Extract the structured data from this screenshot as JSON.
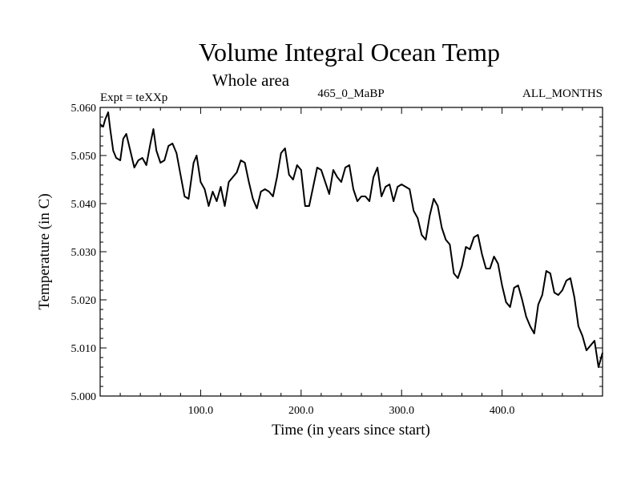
{
  "chart_data": {
    "type": "line",
    "title": "Volume Integral Ocean Temp",
    "subtitle": "Whole area",
    "experiment": "Expt = teXXp",
    "period": "465_0_MaBP",
    "months": "ALL_MONTHS",
    "xlabel": "Time (in years since start)",
    "ylabel": "Temperature (in C)",
    "xlim": [
      0,
      500
    ],
    "ylim": [
      5.0,
      5.06
    ],
    "x_ticks": [
      100,
      200,
      300,
      400
    ],
    "x_tick_labels": [
      "100.0",
      "200.0",
      "300.0",
      "400.0"
    ],
    "y_ticks": [
      5.0,
      5.01,
      5.02,
      5.03,
      5.04,
      5.05,
      5.06
    ],
    "y_tick_labels": [
      "5.000",
      "5.010",
      "5.020",
      "5.030",
      "5.040",
      "5.050",
      "5.060"
    ],
    "series": [
      {
        "name": "Volume integral ocean temperature",
        "color": "#000000",
        "x": [
          0,
          3,
          5,
          8,
          10,
          13,
          16,
          20,
          23,
          26,
          30,
          34,
          38,
          42,
          46,
          50,
          53,
          56,
          60,
          64,
          68,
          72,
          76,
          80,
          84,
          88,
          90,
          93,
          96,
          100,
          104,
          108,
          112,
          116,
          120,
          124,
          128,
          132,
          136,
          140,
          144,
          148,
          152,
          156,
          160,
          164,
          168,
          172,
          176,
          180,
          184,
          188,
          192,
          196,
          200,
          204,
          208,
          212,
          216,
          220,
          224,
          228,
          232,
          236,
          240,
          244,
          248,
          252,
          256,
          260,
          264,
          268,
          272,
          276,
          280,
          284,
          288,
          292,
          296,
          300,
          304,
          308,
          312,
          316,
          320,
          324,
          328,
          332,
          336,
          340,
          344,
          348,
          352,
          356,
          360,
          364,
          368,
          372,
          376,
          380,
          384,
          388,
          392,
          396,
          400,
          404,
          408,
          412,
          416,
          420,
          424,
          428,
          432,
          436,
          440,
          444,
          448,
          452,
          456,
          460,
          464,
          468,
          472,
          476,
          480,
          484,
          488,
          492,
          496,
          500
        ],
        "values": [
          5.0565,
          5.056,
          5.0575,
          5.059,
          5.0555,
          5.051,
          5.0495,
          5.049,
          5.0535,
          5.0545,
          5.051,
          5.0475,
          5.049,
          5.0495,
          5.048,
          5.0525,
          5.0555,
          5.051,
          5.0485,
          5.049,
          5.052,
          5.0525,
          5.0505,
          5.046,
          5.0415,
          5.041,
          5.044,
          5.0485,
          5.05,
          5.0445,
          5.043,
          5.0395,
          5.0425,
          5.0405,
          5.0435,
          5.0395,
          5.0445,
          5.0455,
          5.0465,
          5.049,
          5.0485,
          5.0445,
          5.041,
          5.039,
          5.0425,
          5.043,
          5.0425,
          5.0415,
          5.0455,
          5.0505,
          5.0515,
          5.046,
          5.045,
          5.048,
          5.047,
          5.0395,
          5.0395,
          5.0435,
          5.0475,
          5.047,
          5.0445,
          5.042,
          5.047,
          5.0455,
          5.0445,
          5.0475,
          5.048,
          5.043,
          5.0405,
          5.0415,
          5.0415,
          5.0405,
          5.0455,
          5.0475,
          5.0415,
          5.0435,
          5.044,
          5.0405,
          5.0435,
          5.044,
          5.0435,
          5.043,
          5.0385,
          5.037,
          5.0335,
          5.0325,
          5.0375,
          5.041,
          5.0395,
          5.035,
          5.0325,
          5.0315,
          5.0255,
          5.0245,
          5.027,
          5.031,
          5.0305,
          5.033,
          5.0335,
          5.0295,
          5.0265,
          5.0265,
          5.029,
          5.0275,
          5.023,
          5.0195,
          5.0185,
          5.0225,
          5.023,
          5.02,
          5.0165,
          5.0145,
          5.013,
          5.019,
          5.021,
          5.026,
          5.0255,
          5.0215,
          5.021,
          5.022,
          5.024,
          5.0245,
          5.0205,
          5.0145,
          5.0125,
          5.0095,
          5.0105,
          5.0115,
          5.006,
          5.009
        ]
      }
    ]
  }
}
